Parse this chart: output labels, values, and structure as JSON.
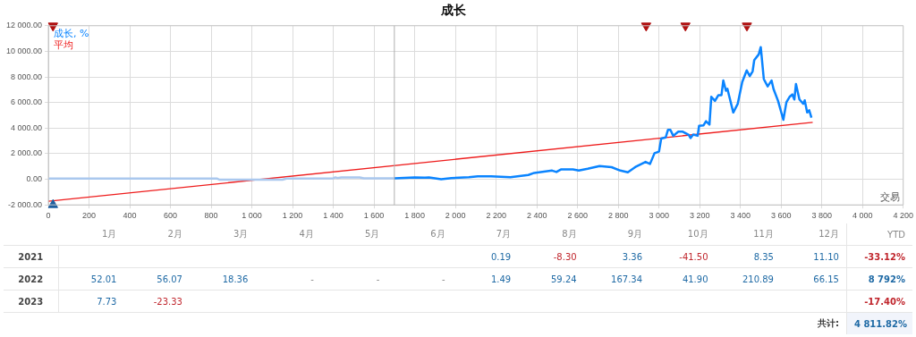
{
  "chart_data": [
    {
      "type": "line",
      "title": "成长",
      "xlabel": "交易",
      "xlim": [
        0,
        4200
      ],
      "xticks": [
        0,
        200,
        400,
        600,
        800,
        {
          "value": 1000,
          "label": "1 000"
        },
        {
          "value": 1200,
          "label": "1 200"
        },
        {
          "value": 1400,
          "label": "1 400"
        },
        {
          "value": 1600,
          "label": "1 600"
        },
        {
          "value": 1800,
          "label": "1 800"
        },
        {
          "value": 2000,
          "label": "2 000"
        },
        {
          "value": 2200,
          "label": "2 200"
        },
        {
          "value": 2400,
          "label": "2 400"
        },
        {
          "value": 2600,
          "label": "2 600"
        },
        {
          "value": 2800,
          "label": "2 800"
        },
        {
          "value": 3000,
          "label": "3 000"
        },
        {
          "value": 3200,
          "label": "3 200"
        },
        {
          "value": 3400,
          "label": "3 400"
        },
        {
          "value": 3600,
          "label": "3 600"
        },
        {
          "value": 3800,
          "label": "3 800"
        },
        {
          "value": 4000,
          "label": "4 000"
        },
        {
          "value": 4200,
          "label": "4 200"
        }
      ],
      "ylim": [
        -2000,
        12000
      ],
      "yticks": [
        {
          "value": -2000,
          "label": "-2 000.00"
        },
        {
          "value": 0,
          "label": "0.00"
        },
        {
          "value": 2000,
          "label": "2 000.00"
        },
        {
          "value": 4000,
          "label": "4 000.00"
        },
        {
          "value": 6000,
          "label": "6 000.00"
        },
        {
          "value": 8000,
          "label": "8 000.00"
        },
        {
          "value": 10000,
          "label": "10 000.00"
        },
        {
          "value": 12000,
          "label": "12 000.00"
        }
      ],
      "grid": true,
      "legend": "top left",
      "line_style": "solid",
      "ref_lines": [
        {
          "axis": "x",
          "value": 1700,
          "color": "#b0b0b0"
        }
      ],
      "series": [
        {
          "color": "#aac8ee",
          "x": [
            0,
            830,
            840,
            1150,
            1170,
            1400,
            1410,
            1420,
            1440,
            1530,
            1550,
            1700
          ],
          "values": [
            50,
            50,
            -30,
            -30,
            60,
            80,
            150,
            100,
            150,
            150,
            80,
            80
          ]
        },
        {
          "name": "成长, %",
          "color": "#0a84ff",
          "x": [
            1700,
            1800,
            1850,
            1870,
            1930,
            1950,
            1980,
            2066,
            2110,
            2175,
            2270,
            2358,
            2387,
            2475,
            2496,
            2518,
            2577,
            2606,
            2650,
            2708,
            2767,
            2810,
            2847,
            2883,
            2934,
            2956,
            2978,
            3000,
            3011,
            3033,
            3044,
            3056,
            3070,
            3095,
            3117,
            3146,
            3155,
            3168,
            3190,
            3197,
            3219,
            3231,
            3248,
            3257,
            3275,
            3292,
            3307,
            3316,
            3329,
            3336,
            3365,
            3387,
            3409,
            3431,
            3446,
            3460,
            3468,
            3490,
            3500,
            3515,
            3534,
            3553,
            3563,
            3585,
            3611,
            3626,
            3643,
            3655,
            3665,
            3673,
            3690,
            3709,
            3716,
            3728,
            3738,
            3749,
            3752
          ],
          "values": [
            80,
            150,
            120,
            150,
            0,
            40,
            100,
            160,
            230,
            230,
            160,
            340,
            500,
            680,
            570,
            770,
            770,
            680,
            820,
            1040,
            950,
            680,
            550,
            950,
            1360,
            1200,
            2040,
            2160,
            3180,
            3270,
            3860,
            3860,
            3400,
            3720,
            3720,
            3470,
            3220,
            3500,
            3400,
            4180,
            4220,
            4540,
            4270,
            6450,
            6130,
            6580,
            6580,
            7720,
            6920,
            7080,
            5220,
            5900,
            7600,
            8510,
            8060,
            8440,
            9310,
            9760,
            10330,
            7830,
            7260,
            7720,
            7040,
            6130,
            4650,
            6020,
            6470,
            6630,
            6240,
            7450,
            6240,
            5900,
            6170,
            5220,
            5400,
            4810,
            4810
          ]
        },
        {
          "name": "平均",
          "color": "#ee1c1c",
          "x": [
            0,
            3755
          ],
          "values": [
            -1720,
            4450
          ]
        },
        {
          "type": "scatter",
          "marker": "triangle",
          "color": "#b01010",
          "x": [
            23,
            2937,
            3130,
            3432
          ],
          "values": [
            12000,
            12000,
            12000,
            12000
          ]
        },
        {
          "type": "scatter",
          "marker": "triangle",
          "color": "#1f5f9f",
          "x": [
            23
          ],
          "values": [
            -2000
          ]
        }
      ]
    },
    {
      "type": "heatmap",
      "categories": [
        "1月",
        "2月",
        "3月",
        "4月",
        "5月",
        "6月",
        "7月",
        "8月",
        "9月",
        "10月",
        "11月",
        "12月",
        "YTD"
      ],
      "y_categories": [
        "2021",
        "2022",
        "2023"
      ],
      "cells": [
        [
          null,
          null,
          null,
          null,
          null,
          null,
          0.19,
          -8.3,
          3.36,
          -41.5,
          8.35,
          11.1,
          -33.12
        ],
        [
          52.01,
          56.07,
          18.36,
          null,
          null,
          null,
          1.49,
          59.24,
          167.34,
          41.9,
          210.89,
          66.15,
          8792
        ],
        [
          7.73,
          -23.33,
          null,
          null,
          null,
          null,
          null,
          null,
          null,
          null,
          null,
          null,
          -17.4
        ]
      ],
      "cell_labels": [
        [
          null,
          null,
          null,
          null,
          null,
          null,
          "0.19",
          "-8.30",
          "3.36",
          "-41.50",
          "8.35",
          "11.10",
          "-33.12%"
        ],
        [
          "52.01",
          "56.07",
          "18.36",
          "-",
          "-",
          "-",
          "1.49",
          "59.24",
          "167.34",
          "41.90",
          "210.89",
          "66.15",
          "8 792%"
        ],
        [
          "7.73",
          "-23.33",
          null,
          null,
          null,
          null,
          null,
          null,
          null,
          null,
          null,
          null,
          "-17.40%"
        ]
      ],
      "annotations": [
        "共计:",
        "4 811.82%"
      ]
    }
  ]
}
